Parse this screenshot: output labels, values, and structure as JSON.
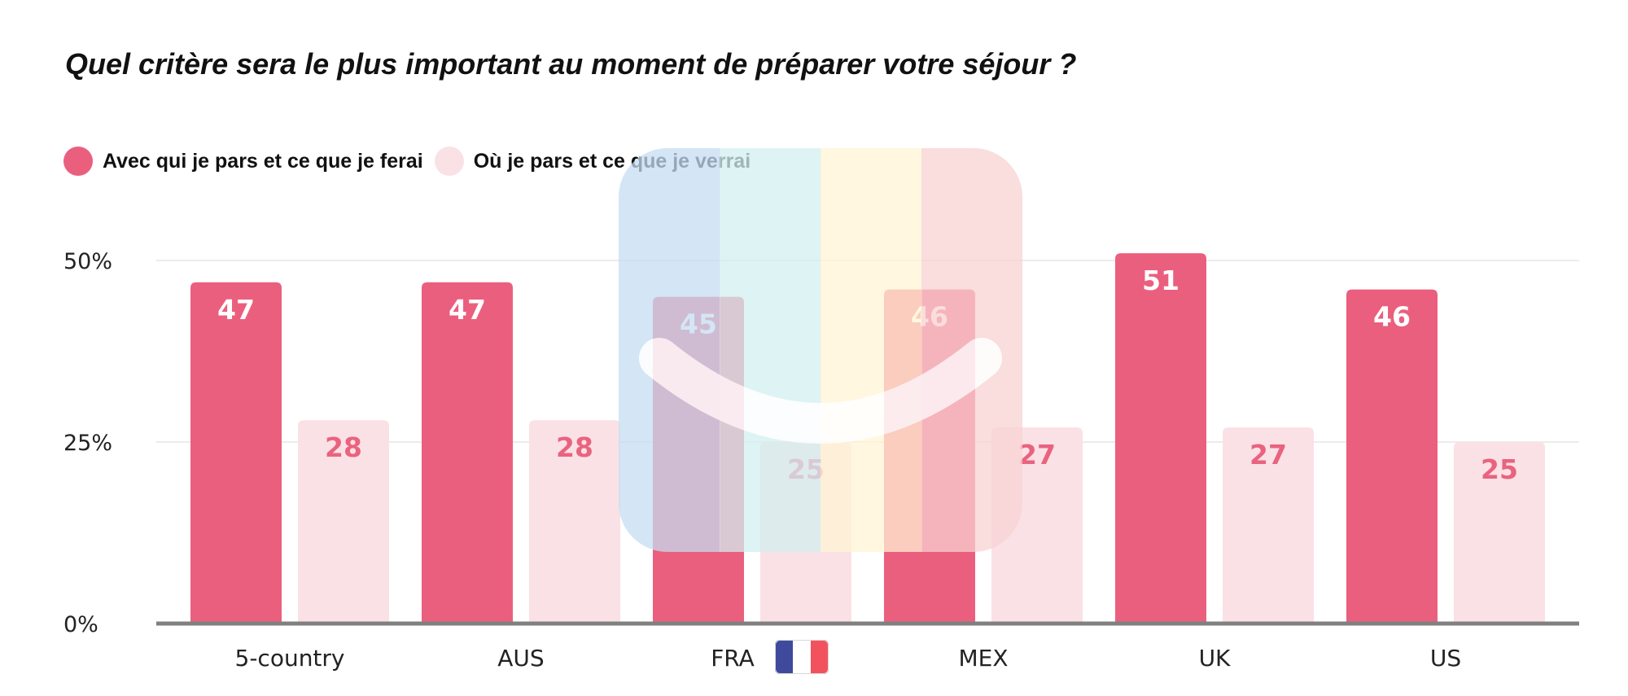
{
  "chart_data": {
    "type": "bar",
    "title": "Quel critère sera le plus important au moment de préparer votre séjour ?",
    "categories": [
      "5-country",
      "AUS",
      "FRA",
      "MEX",
      "UK",
      "US"
    ],
    "series": [
      {
        "name": "Avec qui je pars et ce que je ferai",
        "values": [
          47,
          47,
          45,
          46,
          51,
          46
        ],
        "color": "#EB5F7E",
        "label_color": "#FFFFFF"
      },
      {
        "name": "Où je pars et ce que je verrai",
        "values": [
          28,
          28,
          25,
          27,
          27,
          25
        ],
        "color": "#FAE1E5",
        "label_color": "#E9637F"
      }
    ],
    "yticks": [
      "0%",
      "25%",
      "50%"
    ],
    "ytick_values": [
      0,
      25,
      50
    ],
    "ylim": [
      0,
      50
    ],
    "grid": true,
    "legend_position": "top-left",
    "flag_category": "FRA",
    "flag_colors": [
      "#3F4A9C",
      "#FFFFFF",
      "#F2525E"
    ],
    "watermark_colors": [
      "#C6DDF1",
      "#D3EFF0",
      "#FFF4D5",
      "#F9D2D2"
    ]
  }
}
